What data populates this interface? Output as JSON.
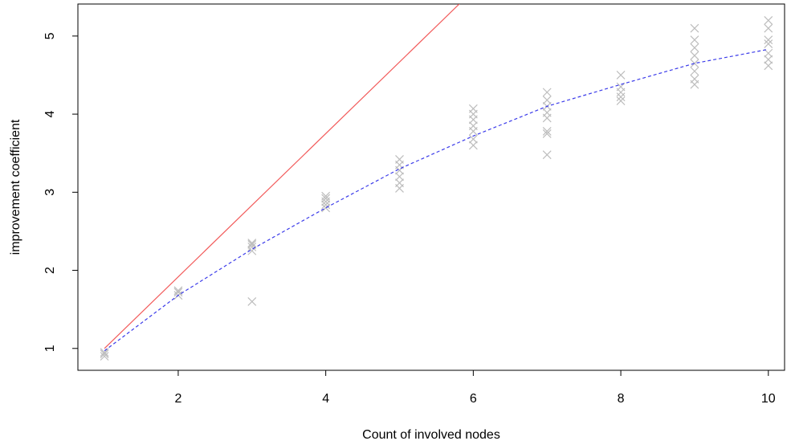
{
  "chart_data": {
    "type": "scatter",
    "xlabel": "Count of involved nodes",
    "ylabel": "improvement coefficient",
    "xlim": [
      0.64,
      10.22
    ],
    "ylim": [
      0.72,
      5.41
    ],
    "xticks": [
      2,
      4,
      6,
      8,
      10
    ],
    "yticks": [
      1,
      2,
      3,
      4,
      5
    ],
    "series": [
      {
        "mode": "markers",
        "color": "#bdbdbd",
        "x": [
          1,
          1,
          1,
          2,
          2,
          2,
          3,
          3,
          3,
          3,
          3,
          4,
          4,
          4,
          4,
          4,
          5,
          5,
          5,
          5,
          5,
          5,
          6,
          6,
          6,
          6,
          6,
          6,
          6,
          7,
          7,
          7,
          7,
          7,
          7,
          7,
          7,
          8,
          8,
          8,
          8,
          8,
          9,
          9,
          9,
          9,
          9,
          9,
          9,
          9,
          10,
          10,
          10,
          10,
          10,
          10,
          10
        ],
        "values": [
          0.9,
          0.93,
          0.95,
          1.68,
          1.72,
          1.74,
          1.6,
          2.25,
          2.3,
          2.33,
          2.35,
          2.8,
          2.84,
          2.88,
          2.92,
          2.95,
          3.05,
          3.12,
          3.2,
          3.28,
          3.35,
          3.42,
          3.6,
          3.68,
          3.78,
          3.85,
          3.93,
          4.0,
          4.07,
          3.48,
          3.75,
          3.78,
          3.95,
          4.02,
          4.1,
          4.18,
          4.28,
          4.17,
          4.22,
          4.28,
          4.35,
          4.5,
          4.38,
          4.45,
          4.55,
          4.65,
          4.75,
          4.85,
          4.95,
          5.1,
          4.62,
          4.7,
          4.78,
          4.9,
          4.95,
          5.1,
          5.2
        ]
      },
      {
        "mode": "line",
        "color": "#f25a5a",
        "dash": false,
        "x": [
          1,
          5.81
        ],
        "values": [
          1,
          5.41
        ]
      },
      {
        "mode": "line",
        "color": "#3b3bea",
        "dash": true,
        "x": [
          1,
          2,
          3,
          4,
          5,
          6,
          7,
          8,
          9,
          10
        ],
        "values": [
          0.97,
          1.68,
          2.27,
          2.8,
          3.3,
          3.72,
          4.1,
          4.38,
          4.65,
          4.83
        ]
      }
    ]
  }
}
